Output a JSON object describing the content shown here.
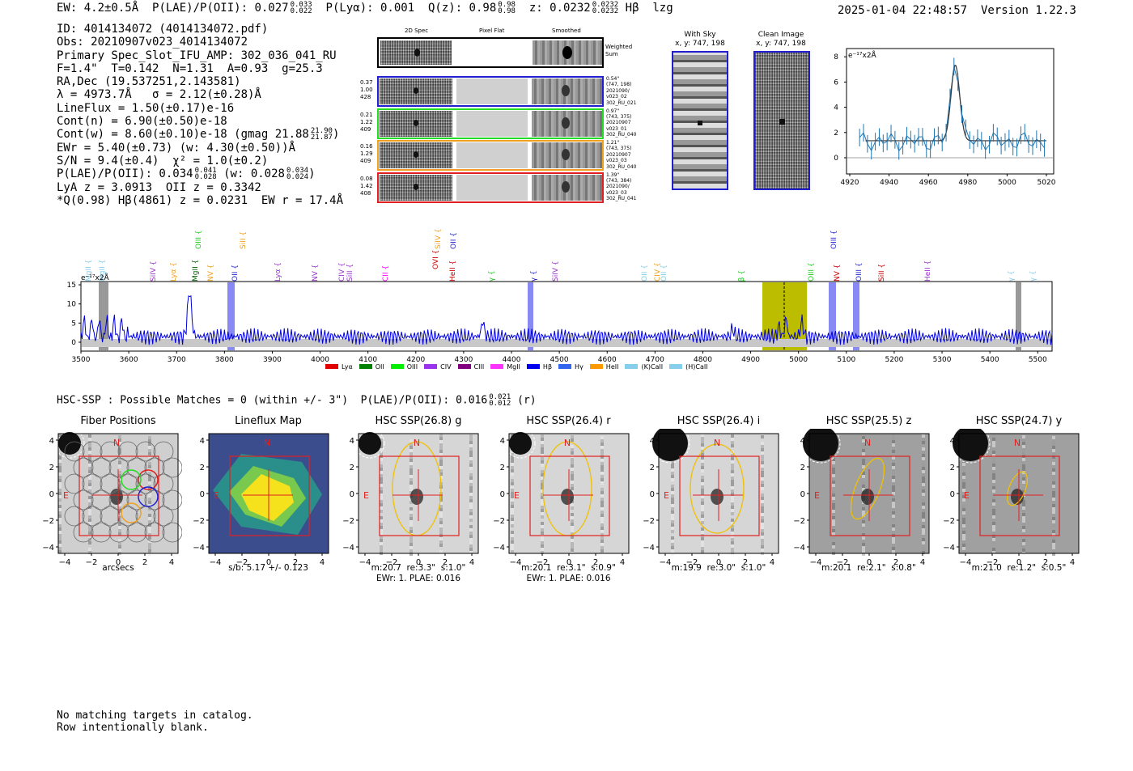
{
  "header": {
    "ew": "EW: 4.2±0.5Å",
    "plae_label": "P(LAE)/P(OII): 0.027",
    "plae_sup": "0.033",
    "plae_sub": "0.022",
    "plya": "P(Lyα): 0.001",
    "q_label": "Q(z): 0.98",
    "q_sup": "0.98",
    "q_sub": "0.98",
    "z_label": "z: 0.0232",
    "z_sup": "0.0232",
    "z_sub": "0.0232",
    "line": "Hβ",
    "flag": "lzg",
    "datetime": "2025-01-04 22:48:57",
    "version": "Version 1.22.3"
  },
  "info": {
    "id": "ID: 4014134072 (4014134072.pdf)",
    "obs": "Obs: 20210907v023_4014134072",
    "primary": "Primary Spec_Slot_IFU_AMP: 302_036_041_RU",
    "fit": "F=1.4\"  T=0.142  N=1.31  A=0.93  g=25.3",
    "radec": "RA,Dec (19.537251,2.143581)",
    "lambda": "λ = 4973.7Å   σ = 2.12(±0.28)Å",
    "lineflux": "LineFlux = 1.50(±0.17)e-16",
    "contn": "Cont(n) = 6.90(±0.50)e-18",
    "contw": "Cont(w) = 8.60(±0.10)e-18 (gmag 21.88",
    "contw_sup": "21.90",
    "contw_sub": "21.87",
    "ewr": "EWr = 5.40(±0.73) (w: 4.30(±0.50))Å",
    "sn": "S/N = 9.4(±0.4)  χ² = 1.0(±0.2)",
    "plae": "P(LAE)/P(OII): 0.034",
    "plae_sup": "0.041",
    "plae_sub": "0.028",
    "plae_w": "(w: 0.028",
    "plae_w_sup": "0.034",
    "plae_w_sub": "0.024",
    "lya": "LyA z = 3.0913  OII z = 0.3342",
    "q": "*Q(0.98) Hβ(4861) z = 0.0231  EW r = 17.4Å"
  },
  "cutouts": {
    "col_2d": "2D Spec",
    "col_flat": "Pixel Flat",
    "col_smooth": "Smoothed",
    "weighted": "Weighted Sum",
    "rows": [
      {
        "color": "#1f1fd0",
        "w1": "0.37",
        "w2": "1.00",
        "w3": "428",
        "a": "0.54\"",
        "b": "(747, 198)",
        "c": "2021090/",
        "d": "v023_02",
        "e": "302_RU_021"
      },
      {
        "color": "#22dd22",
        "w1": "0.21",
        "w2": "1.22",
        "w3": "409",
        "a": "0.97\"",
        "b": "(743, 375)",
        "c": "20210907",
        "d": "v023_01",
        "e": "302_RU_040"
      },
      {
        "color": "#f0a020",
        "w1": "0.16",
        "w2": "1.29",
        "w3": "409",
        "a": "1.21\"",
        "b": "(743, 375)",
        "c": "20210907",
        "d": "v023_03",
        "e": "302_RU_040"
      },
      {
        "color": "#e02020",
        "w1": "0.08",
        "w2": "1.42",
        "w3": "408",
        "a": "1.39\"",
        "b": "(743, 384)",
        "c": "2021090/",
        "d": "v023_03",
        "e": "302_RU_041"
      }
    ]
  },
  "sky": {
    "with_title": "With Sky",
    "with_coords": "x, y: 747, 198",
    "clean_title": "Clean Image",
    "clean_coords": "x, y: 747, 198"
  },
  "zoom_plot": {
    "unit": "e⁻¹⁷x2Å",
    "xticks": [
      "4920",
      "4940",
      "4960",
      "4980",
      "5000",
      "5020"
    ],
    "yticks": [
      "0",
      "2",
      "4",
      "6",
      "8"
    ]
  },
  "spectrum": {
    "unit": "e⁻¹⁷x2Å",
    "xticks": [
      "3500",
      "3600",
      "3700",
      "3800",
      "3900",
      "4000",
      "4100",
      "4200",
      "4300",
      "4400",
      "4500",
      "4600",
      "4700",
      "4800",
      "4900",
      "5000",
      "5100",
      "5200",
      "5300",
      "5400",
      "5500"
    ],
    "yticks": [
      "0",
      "5",
      "10",
      "15"
    ],
    "line_labels": [
      {
        "t": "MgII",
        "c": "#87ceeb"
      },
      {
        "t": "MgII",
        "c": "#87ceeb"
      },
      {
        "t": "SiIV",
        "c": "#9933cc"
      },
      {
        "t": "Lyα",
        "c": "#f0a020"
      },
      {
        "t": "MgII",
        "c": "#006400"
      },
      {
        "t": "OIII",
        "c": "#22cc22"
      },
      {
        "t": "NV",
        "c": "#f0a020"
      },
      {
        "t": "OII",
        "c": "#1f1fd0"
      },
      {
        "t": "SiII",
        "c": "#f0a020"
      },
      {
        "t": "Lyα",
        "c": "#9933cc"
      },
      {
        "t": "NV",
        "c": "#9933cc"
      },
      {
        "t": "CIV",
        "c": "#9933cc"
      },
      {
        "t": "SiII",
        "c": "#9933cc"
      },
      {
        "t": "CII",
        "c": "#ff00ff"
      },
      {
        "t": "SiIV",
        "c": "#f0a020"
      },
      {
        "t": "OVI",
        "c": "#cc0000"
      },
      {
        "t": "OII",
        "c": "#1f1fd0"
      },
      {
        "t": "HeII",
        "c": "#cc0000"
      },
      {
        "t": "Hγ",
        "c": "#22cc22"
      },
      {
        "t": "Hγ",
        "c": "#1f1fd0"
      },
      {
        "t": "SiIV",
        "c": "#9933cc"
      },
      {
        "t": "OII",
        "c": "#87ceeb"
      },
      {
        "t": "CIV",
        "c": "#f0a020"
      },
      {
        "t": "OII",
        "c": "#87ceeb"
      },
      {
        "t": "Hβ",
        "c": "#22cc22"
      },
      {
        "t": "OIII",
        "c": "#22cc22"
      },
      {
        "t": "OIII",
        "c": "#1f1fd0"
      },
      {
        "t": "NV",
        "c": "#cc0000"
      },
      {
        "t": "OIII",
        "c": "#1f1fd0"
      },
      {
        "t": "SiII",
        "c": "#cc0000"
      },
      {
        "t": "HeII",
        "c": "#9933cc"
      },
      {
        "t": "Hγ",
        "c": "#87ceeb"
      },
      {
        "t": "Hγ",
        "c": "#87ceeb"
      }
    ],
    "legend": [
      {
        "t": "Lyα",
        "c": "#e00000"
      },
      {
        "t": "OII",
        "c": "#008000"
      },
      {
        "t": "OIII",
        "c": "#00ee00"
      },
      {
        "t": "CIV",
        "c": "#9933ee"
      },
      {
        "t": "CIII",
        "c": "#800080"
      },
      {
        "t": "MgII",
        "c": "#ff33ff"
      },
      {
        "t": "Hβ",
        "c": "#0000ee"
      },
      {
        "t": "Hγ",
        "c": "#3366ee"
      },
      {
        "t": "HeII",
        "c": "#ff9900"
      },
      {
        "t": "(K)CaII",
        "c": "#87ceeb"
      },
      {
        "t": "(H)CaII",
        "c": "#87ceeb"
      }
    ]
  },
  "hsc": {
    "title": "HSC-SSP : Possible Matches = 0 (within +/- 3\")  P(LAE)/P(OII): 0.016",
    "plae_sup": "0.021",
    "plae_sub": "0.012",
    "band": "(r)",
    "panels": [
      {
        "title": "Fiber Positions",
        "n": "N",
        "e": "E",
        "cap1": "arcsecs",
        "cap2": ""
      },
      {
        "title": "Lineflux Map",
        "n": "N",
        "e": "E",
        "cap1": "s/b: 5.17 +/- 0.123",
        "cap2": ""
      },
      {
        "title": "HSC SSP(26.8) g",
        "n": "N",
        "e": "E",
        "cap1": "m:20.7  re:3.3\"  s:1.0\"",
        "cap2": "EWr: 1. PLAE: 0.016"
      },
      {
        "title": "HSC SSP(26.4) r",
        "n": "N",
        "e": "E",
        "cap1": "m:20.1  re:3.1\"  s:0.9\"",
        "cap2": "EWr: 1. PLAE: 0.016"
      },
      {
        "title": "HSC SSP(26.4) i",
        "n": "N",
        "e": "E",
        "cap1": "m:19.9  re:3.0\"  s:1.0\"",
        "cap2": ""
      },
      {
        "title": "HSC SSP(25.5) z",
        "n": "N",
        "e": "E",
        "cap1": "m:20.1  re:2.1\"  s:0.8\"",
        "cap2": ""
      },
      {
        "title": "HSC SSP(24.7) y",
        "n": "N",
        "e": "E",
        "cap1": "m:21.0  re:1.2\"  s:0.5\"",
        "cap2": ""
      }
    ],
    "ticks": [
      "−4",
      "−2",
      "0",
      "2",
      "4"
    ]
  },
  "footer": {
    "line1": "No matching targets in catalog.",
    "line2": "Row intentionally blank."
  }
}
